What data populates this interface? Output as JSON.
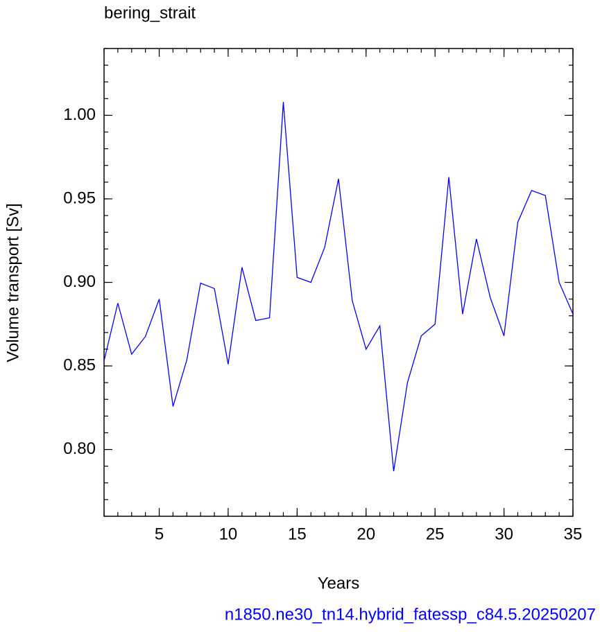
{
  "chart_data": {
    "type": "line",
    "title": "bering_strait",
    "xlabel": "Years",
    "ylabel": "Volume transport [Sv]",
    "footer": "n1850.ne30_tn14.hybrid_fatessp_c84.5.20250207",
    "x": [
      1,
      2,
      3,
      4,
      5,
      6,
      7,
      8,
      9,
      10,
      11,
      12,
      13,
      14,
      15,
      16,
      17,
      18,
      19,
      20,
      21,
      22,
      23,
      24,
      25,
      26,
      27,
      28,
      29,
      30,
      31,
      32,
      33,
      34,
      35
    ],
    "series": [
      {
        "name": "bering_strait",
        "color": "#0000ff",
        "values": [
          0.853,
          0.8876,
          0.857,
          0.8676,
          0.89,
          0.8257,
          0.8535,
          0.8996,
          0.8963,
          0.851,
          0.909,
          0.8772,
          0.8788,
          1.008,
          0.903,
          0.9,
          0.921,
          0.962,
          0.889,
          0.86,
          0.874,
          0.787,
          0.84,
          0.868,
          0.875,
          0.963,
          0.881,
          0.926,
          0.891,
          0.868,
          0.936,
          0.955,
          0.952,
          0.9,
          0.881
        ]
      }
    ],
    "xlim": [
      1,
      35
    ],
    "xticks": [
      5,
      10,
      15,
      20,
      25,
      30,
      35
    ],
    "ylim": [
      0.76,
      1.04
    ],
    "yticks": [
      {
        "value": 0.8,
        "label": "0.80"
      },
      {
        "value": 0.85,
        "label": "0.85"
      },
      {
        "value": 0.9,
        "label": "0.90"
      },
      {
        "value": 0.95,
        "label": "0.95"
      },
      {
        "value": 1.0,
        "label": "1.00"
      }
    ],
    "grid": false
  }
}
